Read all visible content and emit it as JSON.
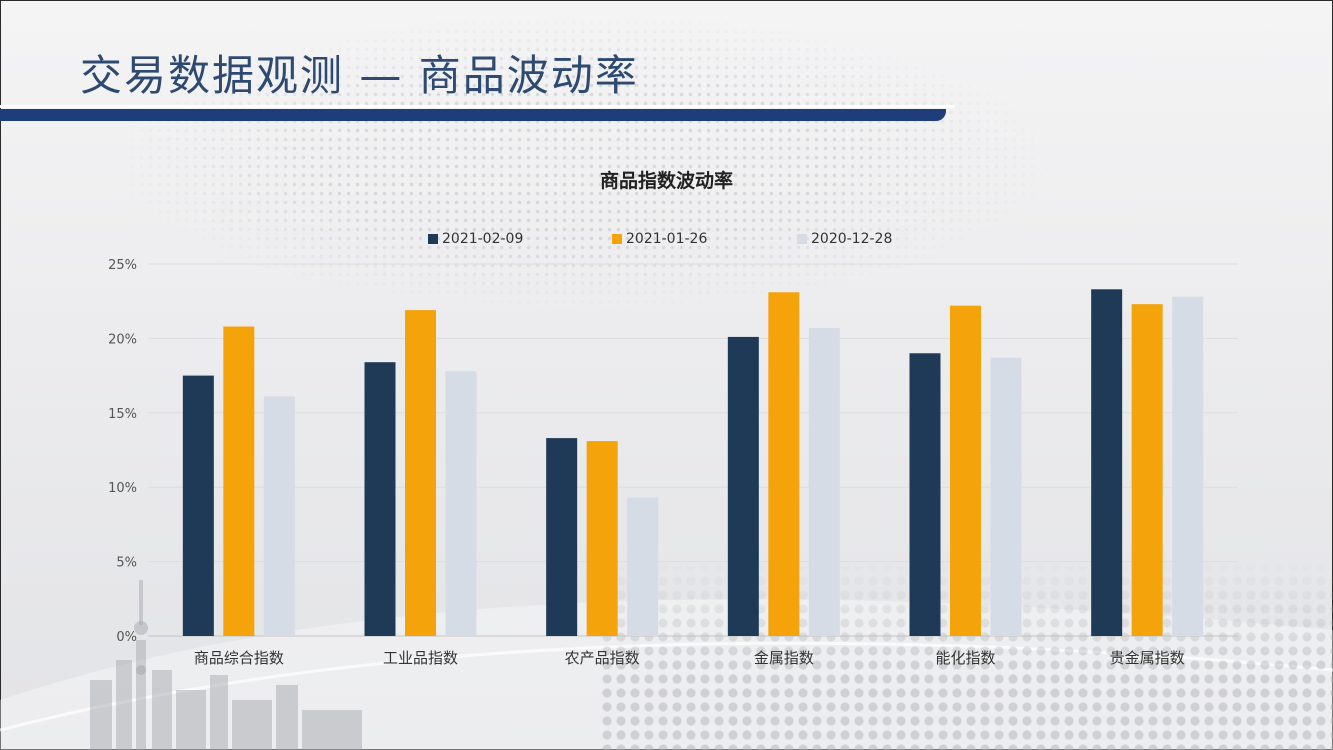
{
  "slide": {
    "title": "交易数据观测 — 商品波动率"
  },
  "colors": {
    "accent_navy": "#1e3d7a",
    "title_text": "#2f4a70"
  },
  "chart_data": {
    "type": "bar",
    "title": "商品指数波动率",
    "xlabel": "",
    "ylabel": "",
    "legend_position": "top",
    "grid": true,
    "ylim": [
      0,
      25
    ],
    "yticks": [
      0,
      5,
      10,
      15,
      20,
      25
    ],
    "ytick_suffix": "%",
    "categories": [
      "商品综合指数",
      "工业品指数",
      "农产品指数",
      "金属指数",
      "能化指数",
      "贵金属指数"
    ],
    "series": [
      {
        "name": "2021-02-09",
        "color": "#1f3a57",
        "values": [
          17.5,
          18.4,
          13.3,
          20.1,
          19.0,
          23.3
        ]
      },
      {
        "name": "2021-01-26",
        "color": "#f5a30a",
        "values": [
          20.8,
          21.9,
          13.1,
          23.1,
          22.2,
          22.3
        ]
      },
      {
        "name": "2020-12-28",
        "color": "#d6dce5",
        "values": [
          16.1,
          17.8,
          9.3,
          20.7,
          18.7,
          22.8
        ]
      }
    ]
  }
}
